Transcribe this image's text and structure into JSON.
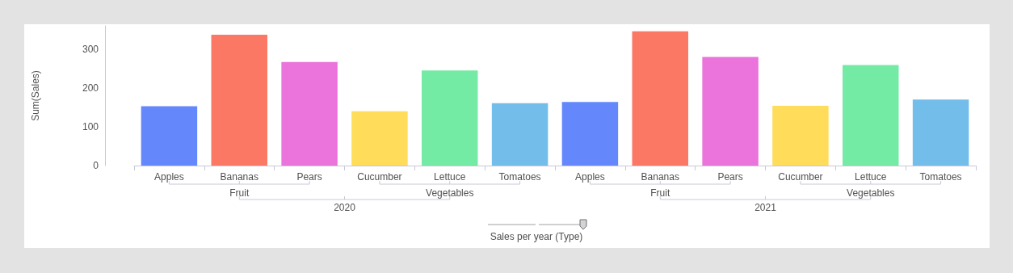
{
  "chart_data": {
    "type": "bar",
    "ylabel": "Sum(Sales)",
    "xlabel": "Sales per year (Type)",
    "categories": [
      "Apples",
      "Bananas",
      "Pears",
      "Cucumber",
      "Lettuce",
      "Tomatoes",
      "Apples",
      "Bananas",
      "Pears",
      "Cucumber",
      "Lettuce",
      "Tomatoes"
    ],
    "values": [
      153,
      337,
      267,
      140,
      245,
      161,
      164,
      346,
      280,
      154,
      259,
      170
    ],
    "colors": [
      "#6488fc",
      "#fa7864",
      "#eb73dc",
      "#ffdc5a",
      "#73eba5",
      "#73bdeb",
      "#6488fc",
      "#fa7864",
      "#eb73dc",
      "#ffdc5a",
      "#73eba5",
      "#73bdeb"
    ],
    "annotations": [
      "Fruit",
      "Vegetables",
      "Fruit",
      "Vegetables",
      "2020",
      "2021"
    ],
    "ylim": [
      0,
      360
    ],
    "yticks": [
      0,
      100,
      200,
      300
    ],
    "grid": false
  }
}
